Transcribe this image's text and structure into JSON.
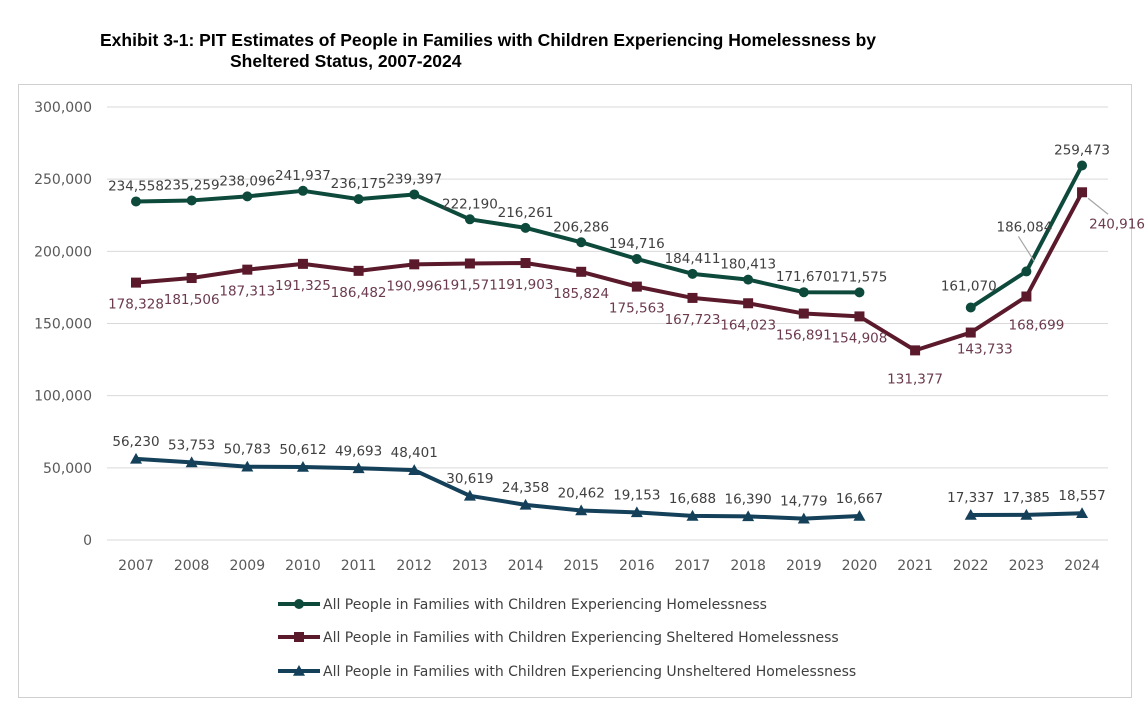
{
  "title_line1": "Exhibit 3-1: PIT Estimates of People in Families with Children Experiencing Homelessness by",
  "title_line2": "Sheltered Status, 2007-2024",
  "chart_data": {
    "type": "line",
    "title": "Exhibit 3-1: PIT Estimates of People in Families with Children Experiencing Homelessness by Sheltered Status, 2007-2024",
    "xlabel": "",
    "ylabel": "",
    "ylim": [
      0,
      300000
    ],
    "yticks": [
      0,
      50000,
      100000,
      150000,
      200000,
      250000,
      300000
    ],
    "ytick_labels": [
      "0",
      "50,000",
      "100,000",
      "150,000",
      "200,000",
      "250,000",
      "300,000"
    ],
    "grid": "horizontal",
    "legend_position": "bottom",
    "categories": [
      "2007",
      "2008",
      "2009",
      "2010",
      "2011",
      "2012",
      "2013",
      "2014",
      "2015",
      "2016",
      "2017",
      "2018",
      "2019",
      "2020",
      "2021",
      "2022",
      "2023",
      "2024"
    ],
    "series": [
      {
        "name": "All People in Families with Children Experiencing Homelessness",
        "color": "#0e4a3c",
        "marker": "circle",
        "values": [
          234558,
          235259,
          238096,
          241937,
          236175,
          239397,
          222190,
          216261,
          206286,
          194716,
          184411,
          180413,
          171670,
          171575,
          null,
          161070,
          186084,
          259473
        ],
        "labels": [
          "234,558",
          "235,259",
          "238,096",
          "241,937",
          "236,175",
          "239,397",
          "222,190",
          "216,261",
          "206,286",
          "194,716",
          "184,411",
          "180,413",
          "171,670",
          "171,575",
          "",
          "161,070",
          "186,084",
          "259,473"
        ],
        "label_color": "#404040"
      },
      {
        "name": "All People in Families with Children Experiencing Sheltered Homelessness",
        "color": "#5a1a2c",
        "marker": "square",
        "values": [
          178328,
          181506,
          187313,
          191325,
          186482,
          190996,
          191571,
          191903,
          185824,
          175563,
          167723,
          164023,
          156891,
          154908,
          131377,
          143733,
          168699,
          240916
        ],
        "labels": [
          "178,328",
          "181,506",
          "187,313",
          "191,325",
          "186,482",
          "190,996",
          "191,571",
          "191,903",
          "185,824",
          "175,563",
          "167,723",
          "164,023",
          "156,891",
          "154,908",
          "131,377",
          "143,733",
          "168,699",
          "240,916"
        ],
        "label_color": "#6b3a4e"
      },
      {
        "name": "All People in Families with Children Experiencing Unsheltered Homelessness",
        "color": "#14405a",
        "marker": "triangle",
        "values": [
          56230,
          53753,
          50783,
          50612,
          49693,
          48401,
          30619,
          24358,
          20462,
          19153,
          16688,
          16390,
          14779,
          16667,
          null,
          17337,
          17385,
          18557
        ],
        "labels": [
          "56,230",
          "53,753",
          "50,783",
          "50,612",
          "49,693",
          "48,401",
          "30,619",
          "24,358",
          "20,462",
          "19,153",
          "16,688",
          "16,390",
          "14,779",
          "16,667",
          "",
          "17,337",
          "17,385",
          "18,557"
        ],
        "label_color": "#404040"
      }
    ]
  }
}
